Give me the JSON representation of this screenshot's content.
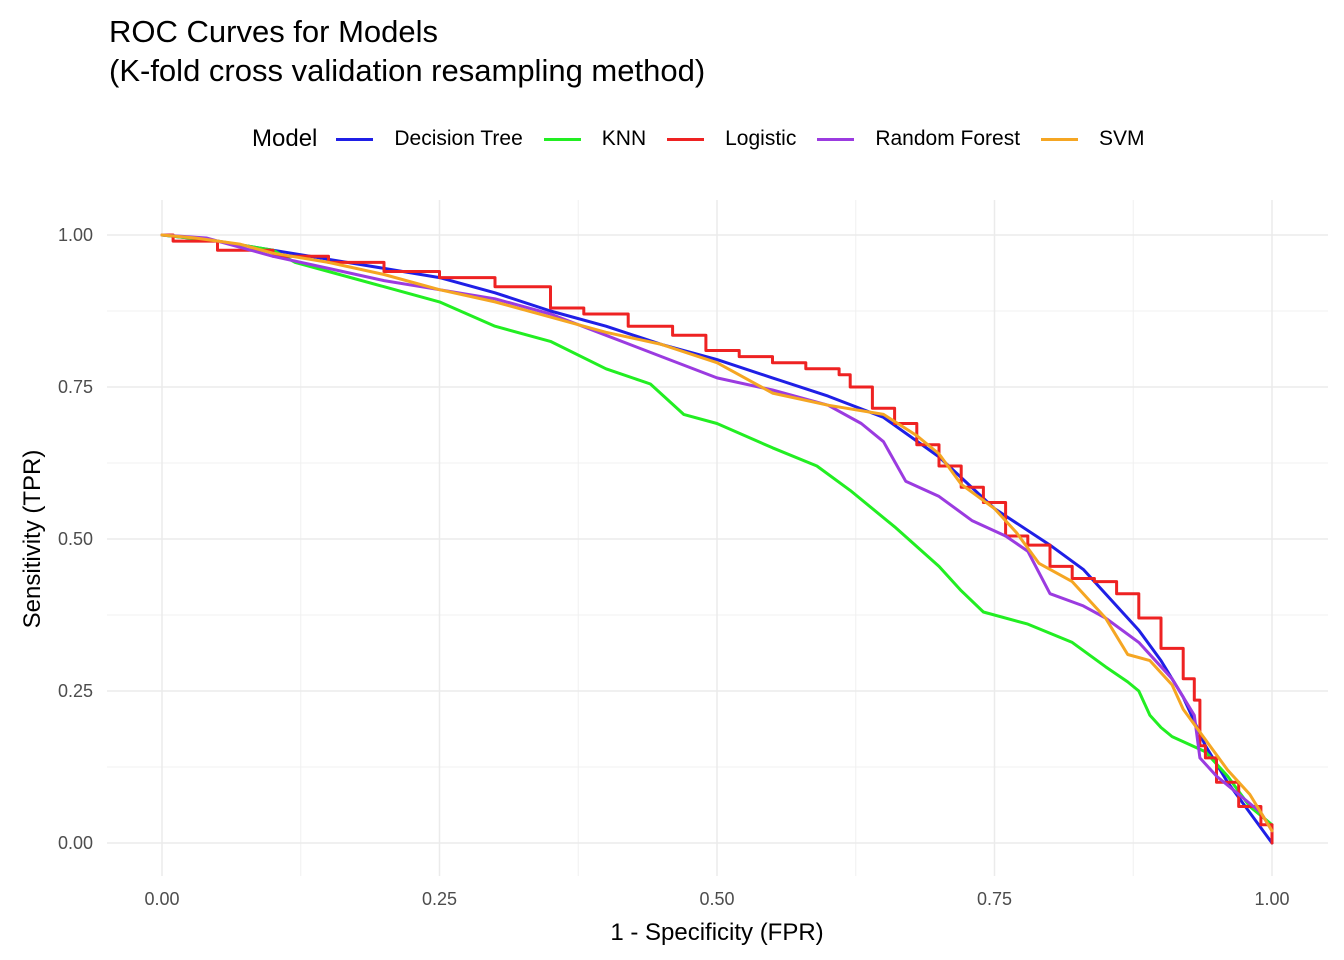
{
  "chart_data": {
    "type": "line",
    "title": "ROC Curves for Models",
    "subtitle": "(K-fold cross validation resampling method)",
    "xlabel": "1 - Specificity (FPR)",
    "ylabel": "Sensitivity (TPR)",
    "xlim": [
      0,
      1
    ],
    "ylim": [
      0,
      1
    ],
    "x_ticks": [
      "0.00",
      "0.25",
      "0.50",
      "0.75",
      "1.00"
    ],
    "y_ticks": [
      "0.00",
      "0.25",
      "0.50",
      "0.75",
      "1.00"
    ],
    "grid": true,
    "legend": {
      "title": "Model",
      "placement": "top"
    },
    "series": [
      {
        "name": "Decision Tree",
        "color": "#1f1fe6",
        "step": false,
        "points": [
          [
            0,
            1.0
          ],
          [
            0.05,
            0.99
          ],
          [
            0.1,
            0.975
          ],
          [
            0.15,
            0.96
          ],
          [
            0.2,
            0.945
          ],
          [
            0.25,
            0.93
          ],
          [
            0.3,
            0.905
          ],
          [
            0.35,
            0.875
          ],
          [
            0.4,
            0.85
          ],
          [
            0.45,
            0.82
          ],
          [
            0.5,
            0.795
          ],
          [
            0.55,
            0.765
          ],
          [
            0.6,
            0.735
          ],
          [
            0.65,
            0.7
          ],
          [
            0.7,
            0.635
          ],
          [
            0.75,
            0.55
          ],
          [
            0.8,
            0.49
          ],
          [
            0.83,
            0.45
          ],
          [
            0.85,
            0.41
          ],
          [
            0.88,
            0.35
          ],
          [
            0.9,
            0.3
          ],
          [
            0.92,
            0.24
          ],
          [
            0.94,
            0.16
          ],
          [
            0.96,
            0.1
          ],
          [
            0.98,
            0.05
          ],
          [
            1.0,
            0.0
          ]
        ]
      },
      {
        "name": "KNN",
        "color": "#22ee22",
        "step": false,
        "points": [
          [
            0,
            1.0
          ],
          [
            0.05,
            0.99
          ],
          [
            0.1,
            0.975
          ],
          [
            0.12,
            0.955
          ],
          [
            0.15,
            0.94
          ],
          [
            0.2,
            0.915
          ],
          [
            0.25,
            0.89
          ],
          [
            0.3,
            0.85
          ],
          [
            0.35,
            0.825
          ],
          [
            0.4,
            0.78
          ],
          [
            0.44,
            0.755
          ],
          [
            0.47,
            0.705
          ],
          [
            0.5,
            0.69
          ],
          [
            0.55,
            0.65
          ],
          [
            0.59,
            0.62
          ],
          [
            0.62,
            0.58
          ],
          [
            0.66,
            0.52
          ],
          [
            0.7,
            0.455
          ],
          [
            0.72,
            0.415
          ],
          [
            0.74,
            0.38
          ],
          [
            0.78,
            0.36
          ],
          [
            0.82,
            0.33
          ],
          [
            0.85,
            0.29
          ],
          [
            0.87,
            0.265
          ],
          [
            0.88,
            0.25
          ],
          [
            0.89,
            0.21
          ],
          [
            0.9,
            0.19
          ],
          [
            0.91,
            0.175
          ],
          [
            0.94,
            0.15
          ],
          [
            0.96,
            0.11
          ],
          [
            0.98,
            0.06
          ],
          [
            1.0,
            0.03
          ]
        ]
      },
      {
        "name": "Logistic",
        "color": "#ee2222",
        "step": true,
        "points": [
          [
            0,
            1.0
          ],
          [
            0.01,
            0.99
          ],
          [
            0.05,
            0.975
          ],
          [
            0.1,
            0.965
          ],
          [
            0.15,
            0.955
          ],
          [
            0.2,
            0.94
          ],
          [
            0.25,
            0.93
          ],
          [
            0.3,
            0.915
          ],
          [
            0.35,
            0.88
          ],
          [
            0.38,
            0.87
          ],
          [
            0.42,
            0.85
          ],
          [
            0.46,
            0.835
          ],
          [
            0.49,
            0.81
          ],
          [
            0.52,
            0.8
          ],
          [
            0.55,
            0.79
          ],
          [
            0.58,
            0.78
          ],
          [
            0.61,
            0.77
          ],
          [
            0.62,
            0.75
          ],
          [
            0.64,
            0.715
          ],
          [
            0.66,
            0.69
          ],
          [
            0.68,
            0.655
          ],
          [
            0.7,
            0.62
          ],
          [
            0.72,
            0.585
          ],
          [
            0.74,
            0.56
          ],
          [
            0.76,
            0.505
          ],
          [
            0.78,
            0.49
          ],
          [
            0.8,
            0.455
          ],
          [
            0.82,
            0.435
          ],
          [
            0.84,
            0.43
          ],
          [
            0.86,
            0.41
          ],
          [
            0.88,
            0.37
          ],
          [
            0.9,
            0.32
          ],
          [
            0.92,
            0.27
          ],
          [
            0.93,
            0.235
          ],
          [
            0.935,
            0.16
          ],
          [
            0.94,
            0.14
          ],
          [
            0.95,
            0.1
          ],
          [
            0.97,
            0.06
          ],
          [
            0.99,
            0.03
          ],
          [
            1.0,
            0.0
          ]
        ]
      },
      {
        "name": "Random Forest",
        "color": "#9b3be0",
        "step": false,
        "points": [
          [
            0,
            1.0
          ],
          [
            0.04,
            0.995
          ],
          [
            0.07,
            0.98
          ],
          [
            0.1,
            0.965
          ],
          [
            0.15,
            0.945
          ],
          [
            0.2,
            0.925
          ],
          [
            0.25,
            0.91
          ],
          [
            0.3,
            0.895
          ],
          [
            0.35,
            0.87
          ],
          [
            0.4,
            0.835
          ],
          [
            0.45,
            0.8
          ],
          [
            0.5,
            0.765
          ],
          [
            0.55,
            0.745
          ],
          [
            0.6,
            0.72
          ],
          [
            0.63,
            0.69
          ],
          [
            0.65,
            0.66
          ],
          [
            0.67,
            0.595
          ],
          [
            0.7,
            0.57
          ],
          [
            0.73,
            0.53
          ],
          [
            0.76,
            0.505
          ],
          [
            0.78,
            0.48
          ],
          [
            0.8,
            0.41
          ],
          [
            0.83,
            0.39
          ],
          [
            0.85,
            0.37
          ],
          [
            0.88,
            0.33
          ],
          [
            0.91,
            0.27
          ],
          [
            0.93,
            0.21
          ],
          [
            0.935,
            0.14
          ],
          [
            0.95,
            0.11
          ],
          [
            0.97,
            0.08
          ],
          [
            0.99,
            0.05
          ],
          [
            1.0,
            0.02
          ]
        ]
      },
      {
        "name": "SVM",
        "color": "#f5a623",
        "step": false,
        "points": [
          [
            0,
            1.0
          ],
          [
            0.03,
            0.995
          ],
          [
            0.07,
            0.985
          ],
          [
            0.1,
            0.97
          ],
          [
            0.15,
            0.955
          ],
          [
            0.2,
            0.935
          ],
          [
            0.25,
            0.91
          ],
          [
            0.3,
            0.89
          ],
          [
            0.35,
            0.865
          ],
          [
            0.4,
            0.84
          ],
          [
            0.45,
            0.82
          ],
          [
            0.5,
            0.79
          ],
          [
            0.55,
            0.74
          ],
          [
            0.6,
            0.72
          ],
          [
            0.65,
            0.705
          ],
          [
            0.68,
            0.67
          ],
          [
            0.7,
            0.64
          ],
          [
            0.72,
            0.59
          ],
          [
            0.75,
            0.55
          ],
          [
            0.77,
            0.51
          ],
          [
            0.79,
            0.46
          ],
          [
            0.82,
            0.43
          ],
          [
            0.85,
            0.37
          ],
          [
            0.87,
            0.31
          ],
          [
            0.89,
            0.3
          ],
          [
            0.91,
            0.26
          ],
          [
            0.92,
            0.22
          ],
          [
            0.94,
            0.17
          ],
          [
            0.96,
            0.12
          ],
          [
            0.98,
            0.08
          ],
          [
            1.0,
            0.02
          ]
        ]
      }
    ]
  }
}
